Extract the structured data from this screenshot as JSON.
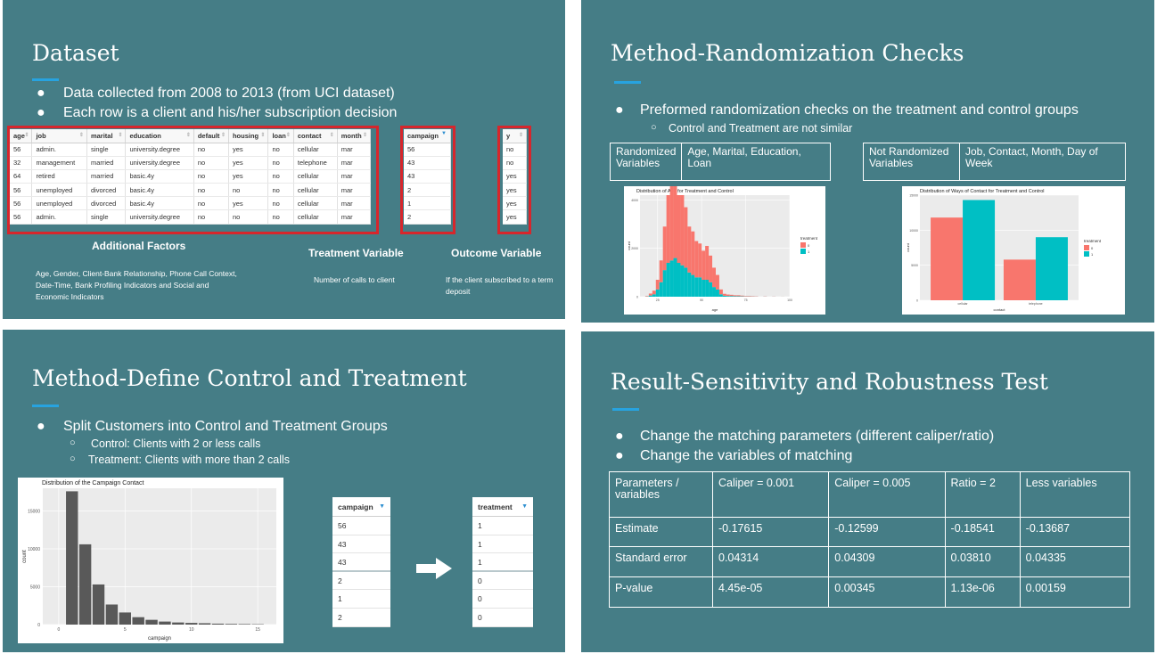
{
  "slide1": {
    "title": "Dataset",
    "bullets": [
      "Data collected from 2008 to 2013 (from UCI dataset)",
      "Each row is a client and his/her subscription decision"
    ],
    "table_headers": [
      "age",
      "job",
      "marital",
      "education",
      "default",
      "housing",
      "loan",
      "contact",
      "month"
    ],
    "table_rows": [
      [
        "56",
        "admin.",
        "single",
        "university.degree",
        "no",
        "yes",
        "no",
        "cellular",
        "mar"
      ],
      [
        "32",
        "management",
        "married",
        "university.degree",
        "no",
        "yes",
        "no",
        "telephone",
        "mar"
      ],
      [
        "64",
        "retired",
        "married",
        "basic.4y",
        "no",
        "yes",
        "no",
        "cellular",
        "mar"
      ],
      [
        "56",
        "unemployed",
        "divorced",
        "basic.4y",
        "no",
        "no",
        "no",
        "cellular",
        "mar"
      ],
      [
        "56",
        "unemployed",
        "divorced",
        "basic.4y",
        "no",
        "yes",
        "no",
        "cellular",
        "mar"
      ],
      [
        "56",
        "admin.",
        "single",
        "university.degree",
        "no",
        "no",
        "no",
        "cellular",
        "mar"
      ]
    ],
    "campaign_header": "campaign",
    "campaign_values": [
      "56",
      "43",
      "43",
      "2",
      "1",
      "2"
    ],
    "y_header": "y",
    "y_values": [
      "no",
      "no",
      "yes",
      "yes",
      "yes",
      "yes"
    ],
    "additional_title": "Additional Factors",
    "additional_text": "Age, Gender, Client-Bank Relationship, Phone Call Context, Date-Time, Bank Profiling Indicators and Social and Economic Indicators",
    "treatment_title": "Treatment Variable",
    "treatment_text": "Number of calls to client",
    "outcome_title": "Outcome Variable",
    "outcome_text": "If the client subscribed to a term deposit"
  },
  "slide2": {
    "title": "Method-Randomization Checks",
    "bullet": "Preformed randomization checks on the treatment and control groups",
    "sub": "Control and Treatment  are not similar",
    "rand_label": "Randomized Variables",
    "rand_vars": "Age, Marital, Education, Loan",
    "notrand_label": "Not Randomized Variables",
    "notrand_vars": "Job, Contact, Month, Day of Week",
    "age_chart": {
      "title": "Distribution of Age for Treatment and Control",
      "xlabel": "age",
      "ylabel": "count",
      "xticks": [
        "25",
        "50",
        "75",
        "100"
      ],
      "yticks": [
        "0",
        "2000",
        "4000"
      ],
      "legend_title": "treatment",
      "legend": [
        "0",
        "1"
      ]
    },
    "contact_chart": {
      "title": "Distribution of Ways of Contact for Treatment and Control",
      "xlabel": "contact",
      "ylabel": "count",
      "xticks": [
        "cellular",
        "telephone"
      ],
      "yticks": [
        "0",
        "5000",
        "10000",
        "15000"
      ],
      "legend_title": "treatment",
      "legend": [
        "0",
        "1"
      ]
    }
  },
  "slide3": {
    "title": "Method-Define Control and Treatment",
    "bullet": "Split Customers into Control and Treatment Groups",
    "subs": [
      "Control: Clients with 2 or less calls",
      "Treatment: Clients with more than 2 calls"
    ],
    "chart_title": "Distribution of the Campaign Contact",
    "xlabel": "campaign",
    "ylabel": "count",
    "xticks": [
      "0",
      "5",
      "10",
      "15"
    ],
    "yticks": [
      "0",
      "5000",
      "10000",
      "15000"
    ],
    "campaign_header": "campaign",
    "campaign_values": [
      "56",
      "43",
      "43",
      "2",
      "1",
      "2"
    ],
    "treatment_header": "treatment",
    "treatment_values": [
      "1",
      "1",
      "1",
      "0",
      "0",
      "0"
    ]
  },
  "slide4": {
    "title": "Result-Sensitivity and Robustness Test",
    "bullets": [
      "Change the matching parameters (different caliper/ratio)",
      "Change the variables of matching"
    ],
    "table": [
      [
        "Parameters / variables",
        "Caliper = 0.001",
        "Caliper = 0.005",
        "Ratio = 2",
        "Less variables"
      ],
      [
        "Estimate",
        "-0.17615",
        "-0.12599",
        "-0.18541",
        "-0.13687"
      ],
      [
        "Standard error",
        "0.04314",
        "0.04309",
        "0.03810",
        "0.04335"
      ],
      [
        "P-value",
        "4.45e-05",
        "0.00345",
        "1.13e-06",
        "0.00159"
      ]
    ]
  },
  "colors": {
    "slide_bg": "#457d86",
    "accent": "#27a3e0",
    "highlight": "#d7262c",
    "control": "#f8766d",
    "treatment": "#00bfc4",
    "bar": "#595959"
  },
  "chart_data": [
    {
      "type": "bar",
      "title": "Distribution of Age for Treatment and Control",
      "xlabel": "age",
      "ylabel": "count",
      "x": [
        18,
        20,
        22,
        24,
        26,
        28,
        30,
        32,
        34,
        36,
        38,
        40,
        42,
        44,
        46,
        48,
        50,
        52,
        54,
        56,
        58,
        60,
        62,
        64,
        66,
        68,
        70,
        72,
        74,
        76,
        78,
        80,
        85,
        90,
        95
      ],
      "series": [
        {
          "name": "0",
          "values": [
            20,
            80,
            150,
            400,
            900,
            1800,
            2800,
            3500,
            3600,
            2800,
            2900,
            2500,
            1900,
            1800,
            1500,
            1400,
            1200,
            1400,
            1100,
            800,
            600,
            200,
            80,
            60,
            50,
            40,
            40,
            30,
            20,
            20,
            15,
            10,
            8,
            5,
            2
          ]
        },
        {
          "name": "1",
          "values": [
            10,
            50,
            100,
            300,
            600,
            1100,
            1400,
            1500,
            1600,
            1400,
            1300,
            1200,
            1000,
            900,
            800,
            800,
            700,
            700,
            600,
            400,
            300,
            100,
            40,
            30,
            30,
            20,
            20,
            15,
            10,
            10,
            8,
            5,
            4,
            2,
            1
          ]
        }
      ],
      "xlim": [
        15,
        100
      ],
      "ylim": [
        0,
        4200
      ]
    },
    {
      "type": "bar",
      "title": "Distribution of Ways of Contact for Treatment and Control",
      "xlabel": "contact",
      "ylabel": "count",
      "categories": [
        "cellular",
        "telephone"
      ],
      "series": [
        {
          "name": "0",
          "values": [
            11800,
            5800
          ]
        },
        {
          "name": "1",
          "values": [
            14300,
            9000
          ]
        }
      ],
      "ylim": [
        0,
        15000
      ]
    },
    {
      "type": "bar",
      "title": "Distribution of the Campaign Contact",
      "xlabel": "campaign",
      "ylabel": "count",
      "x": [
        1,
        2,
        3,
        4,
        5,
        6,
        7,
        8,
        9,
        10,
        11,
        12,
        13,
        14,
        15
      ],
      "values": [
        17600,
        10600,
        5300,
        2650,
        1600,
        980,
        630,
        400,
        280,
        225,
        180,
        125,
        90,
        70,
        50
      ],
      "ylim": [
        0,
        18000
      ]
    }
  ]
}
